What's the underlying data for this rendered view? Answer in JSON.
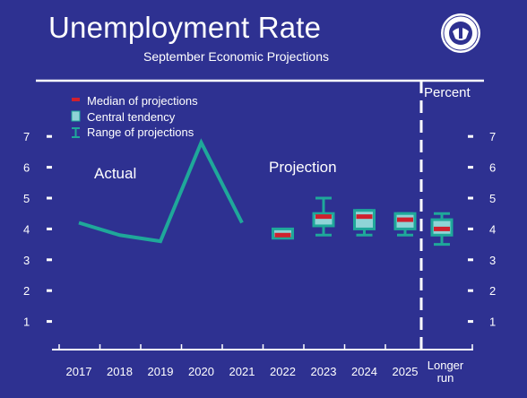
{
  "title": "Unemployment Rate",
  "subtitle": "September Economic Projections",
  "unit_label": "Percent",
  "legend": [
    {
      "label": "Median of projections",
      "kind": "median"
    },
    {
      "label": "Central tendency",
      "kind": "central"
    },
    {
      "label": "Range of projections",
      "kind": "range"
    }
  ],
  "annotations": {
    "actual": "Actual",
    "projection": "Projection"
  },
  "colors": {
    "background": "#2e3191",
    "actual_line": "#1fa89a",
    "range": "#1fa89a",
    "central_fill": "#8fd4d6",
    "median": "#d0202e",
    "text": "#ffffff"
  },
  "chart_data": {
    "type": "line",
    "ylim": [
      0,
      8
    ],
    "y_ticks": [
      1,
      2,
      3,
      4,
      5,
      6,
      7
    ],
    "categories": [
      "2017",
      "2018",
      "2019",
      "2020",
      "2021",
      "2022",
      "2023",
      "2024",
      "2025",
      "Longer run"
    ],
    "actual": {
      "x": [
        "2017",
        "2018",
        "2019",
        "2020",
        "2021"
      ],
      "values": [
        4.2,
        3.8,
        3.6,
        6.8,
        4.2
      ]
    },
    "projections": [
      {
        "x": "2022",
        "median": 3.8,
        "central_low": 3.7,
        "central_high": 4.0,
        "range_low": 3.7,
        "range_high": 4.0
      },
      {
        "x": "2023",
        "median": 4.4,
        "central_low": 4.1,
        "central_high": 4.5,
        "range_low": 3.8,
        "range_high": 5.0
      },
      {
        "x": "2024",
        "median": 4.4,
        "central_low": 4.0,
        "central_high": 4.6,
        "range_low": 3.8,
        "range_high": 4.6
      },
      {
        "x": "2025",
        "median": 4.3,
        "central_low": 4.0,
        "central_high": 4.5,
        "range_low": 3.8,
        "range_high": 4.5
      },
      {
        "x": "Longer run",
        "median": 4.0,
        "central_low": 3.8,
        "central_high": 4.3,
        "range_low": 3.5,
        "range_high": 4.5
      }
    ],
    "grid": false
  }
}
